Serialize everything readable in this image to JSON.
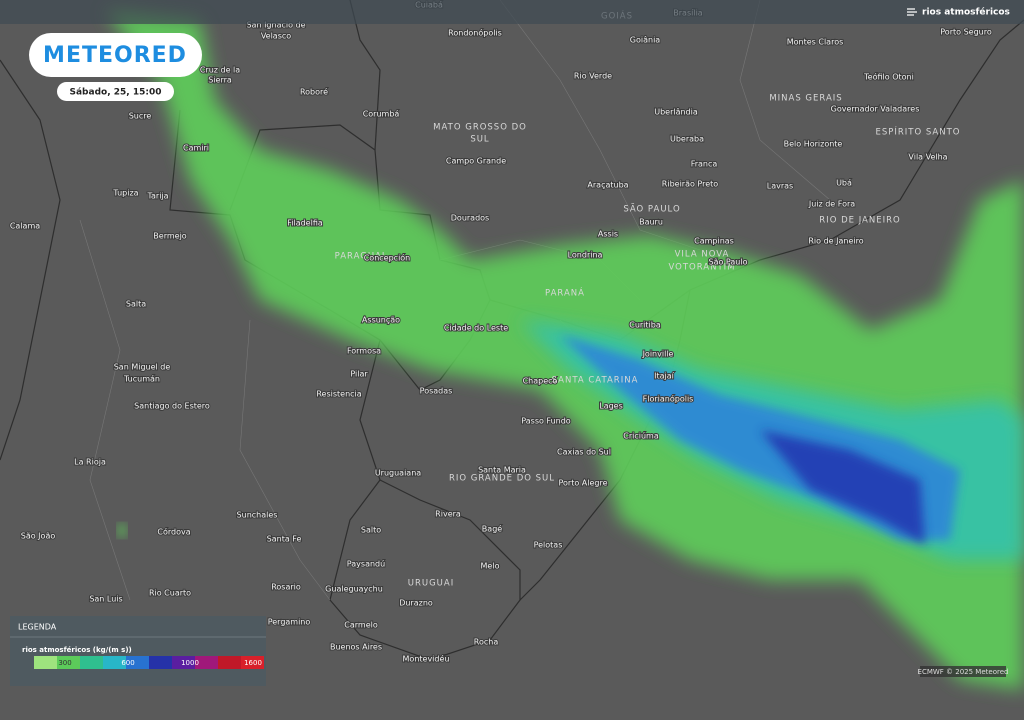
{
  "header": {
    "brand": "METEORED",
    "date": "Sábado, 25, 15:00",
    "layer": "rios atmosféricos"
  },
  "map": {
    "labels": [
      "Cuiabá",
      "GOIÁS",
      "Brasília",
      "San Ignacio de",
      "Velasco",
      "Rondonópolis",
      "Goiânia",
      "Montes Claros",
      "Porto Seguro",
      "Cruz de la",
      "Sierra",
      "Roboré",
      "Rio Verde",
      "Teófilo Otoni",
      "MINAS GERAIS",
      "Governador Valadares",
      "Sucre",
      "Corumbá",
      "MATO GROSSO DO",
      "SUL",
      "Uberlândia",
      "ESPÍRITO SANTO",
      "Camiri",
      "Campo Grande",
      "Uberaba",
      "Belo Horizonte",
      "Vila Velha",
      "Franca",
      "Tupiza",
      "Tarija",
      "Araçatuba",
      "Ribeirão Preto",
      "Lavras",
      "Ubá",
      "Juiz de Fora",
      "RIO DE JANEIRO",
      "Calama",
      "Filadelfia",
      "Dourados",
      "SÃO PAULO",
      "Bauru",
      "Bermejo",
      "Assis",
      "Campinas",
      "Rio de Janeiro",
      "PARAGUAI",
      "Concepción",
      "Londrina",
      "VILA NOVA",
      "VOTORANTIM",
      "São Paulo",
      "PARANÁ",
      "Salta",
      "Assunção",
      "Cidade do Leste",
      "Curitiba",
      "Formosa",
      "Joinville",
      "San Miguel de",
      "Tucumán",
      "Pilar",
      "Itajaí",
      "Chapecó",
      "SANTA CATARINA",
      "Resistencia",
      "Posadas",
      "Florianópolis",
      "Santiago do Estero",
      "Lages",
      "Passo Fundo",
      "Criciúma",
      "Caxias do Sul",
      "La Rioja",
      "Uruguaiana",
      "Santa Maria",
      "RIO GRANDE DO SUL",
      "Porto Alegre",
      "Rivera",
      "Sunchales",
      "Bagé",
      "Salto",
      "São João",
      "Córdova",
      "Santa Fe",
      "Pelotas",
      "Paysandú",
      "Melo",
      "Rosario",
      "Gualeguaychu",
      "URUGUAI",
      "San Luis",
      "Rio Cuarto",
      "Durazno",
      "Pergamino",
      "Carmelo",
      "Rocha",
      "Buenos Aires",
      "Montevidéu"
    ]
  },
  "legend": {
    "title": "LEGENDA",
    "subtitle": "rios atmosféricos (kg/(m s))",
    "ticks": [
      "300",
      "600",
      "1000",
      "1600"
    ]
  },
  "credit": "ECMWF © 2025 Meteored"
}
